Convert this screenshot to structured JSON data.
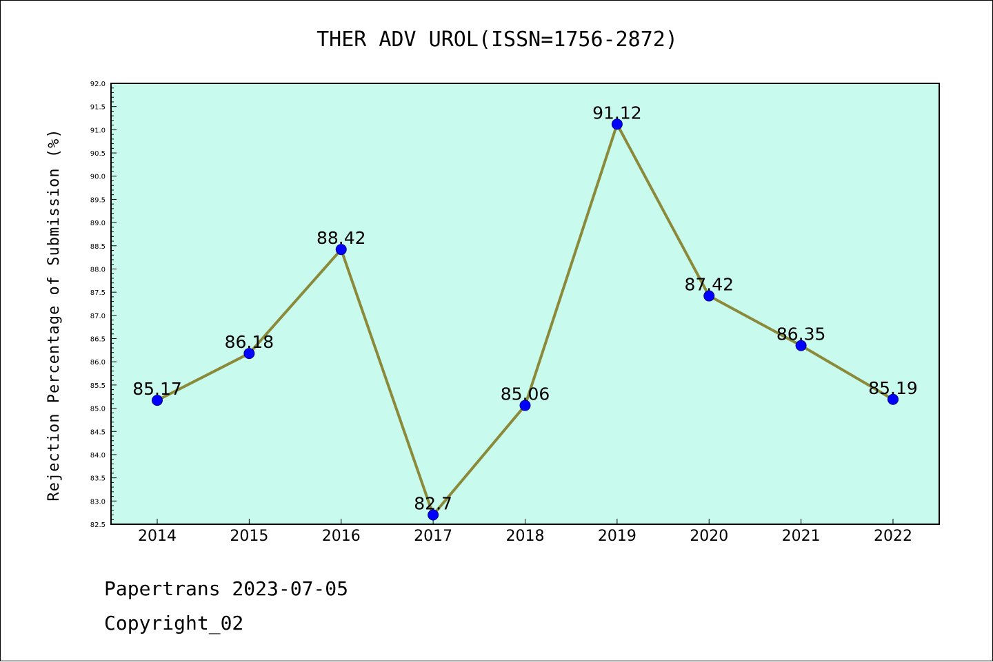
{
  "chart_data": {
    "type": "line",
    "title": "THER ADV UROL(ISSN=1756-2872)",
    "xlabel": "",
    "ylabel": "Rejection Percentage of Submission (%)",
    "categories": [
      "2014",
      "2015",
      "2016",
      "2017",
      "2018",
      "2019",
      "2020",
      "2021",
      "2022"
    ],
    "values": [
      85.17,
      86.18,
      88.42,
      82.7,
      85.06,
      91.12,
      87.42,
      86.35,
      85.19
    ],
    "data_labels": [
      "85.17",
      "86.18",
      "88.42",
      "82.7",
      "85.06",
      "91.12",
      "87.42",
      "86.35",
      "85.19"
    ],
    "ylim": [
      82.5,
      92.0
    ],
    "yticks": [
      "82.5",
      "83.0",
      "83.5",
      "84.0",
      "84.5",
      "85.0",
      "85.5",
      "86.0",
      "86.5",
      "87.0",
      "87.5",
      "88.0",
      "88.5",
      "89.0",
      "89.5",
      "90.0",
      "90.5",
      "91.0",
      "91.5",
      "92.0"
    ],
    "grid": false,
    "colors": {
      "plot_background": "#c8fbee",
      "line": "#8b8a3a",
      "marker": "#0000ff"
    }
  },
  "footer": {
    "line1": "Papertrans 2023-07-05",
    "line2": "Copyright_02"
  }
}
